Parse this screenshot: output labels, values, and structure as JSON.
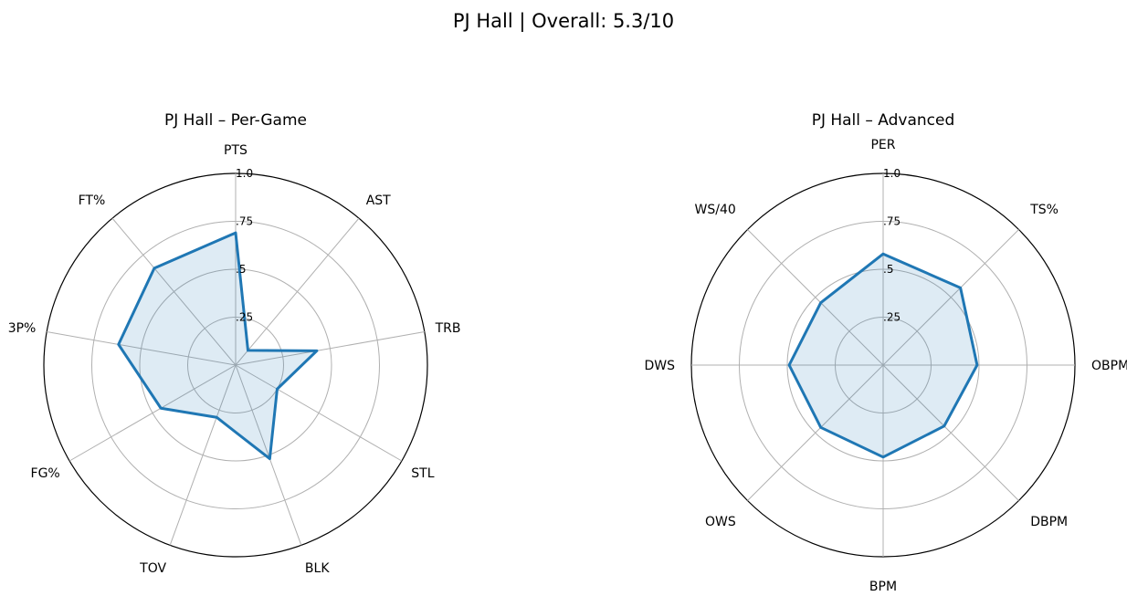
{
  "figure": {
    "suptitle": "PJ Hall | Overall: 5.3/10"
  },
  "chart_data": [
    {
      "type": "radar",
      "title": "PJ Hall – Per-Game",
      "categories": [
        "PTS",
        "AST",
        "TRB",
        "STL",
        "BLK",
        "TOV",
        "FG%",
        "3P%",
        "FT%"
      ],
      "values": [
        0.69,
        0.1,
        0.43,
        0.25,
        0.52,
        0.29,
        0.45,
        0.62,
        0.66
      ],
      "rlim": [
        0,
        1.0
      ],
      "rticks": [
        ".25",
        ".5",
        ".75",
        "1.0"
      ],
      "color": "#1f77b4",
      "grid": true
    },
    {
      "type": "radar",
      "title": "PJ Hall – Advanced",
      "categories": [
        "PER",
        "TS%",
        "OBPM",
        "DBPM",
        "BPM",
        "OWS",
        "DWS",
        "WS/40"
      ],
      "values": [
        0.58,
        0.57,
        0.49,
        0.45,
        0.48,
        0.46,
        0.49,
        0.46
      ],
      "rlim": [
        0,
        1.0
      ],
      "rticks": [
        ".25",
        ".5",
        ".75",
        "1.0"
      ],
      "color": "#1f77b4",
      "grid": true
    }
  ]
}
